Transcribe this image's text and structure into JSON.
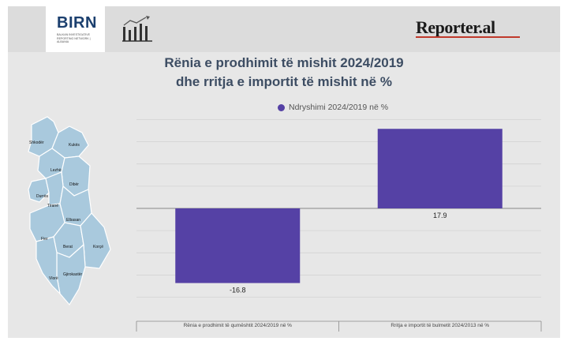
{
  "header": {
    "logo_text": "BIRN",
    "logo_sub": "BALKAN INVESTIGATIVE REPORTING NETWORK | ALBANIA",
    "brand": "Reporter.al",
    "growth_icon": "bar-chart-growth-icon"
  },
  "map": {
    "icon": "albania-districts-map",
    "labels": [
      "Shkodër",
      "Kukës",
      "Lezhë",
      "Dibër",
      "Durrës",
      "Tiranë",
      "Elbasan",
      "Fier",
      "Berat",
      "Korçë",
      "Gjirokastër",
      "Vlorë"
    ],
    "fill_color": "#a9c9dd"
  },
  "chart_data": {
    "type": "bar",
    "title": "Rënia e prodhimit të mishit 2024/2019 dhe rritja e importit të mishit në %",
    "title_line1": "Rënia e prodhimit të mishit 2024/2019",
    "title_line2": "dhe rritja e importit të mishit në %",
    "categories": [
      "Rënia e prodhimit të qumështit 2024/2019 në %",
      "Rritja e importit të bulmetit 2024/2013 në %"
    ],
    "series": [
      {
        "name": "Ndryshimi 2024/2019 në %",
        "values": [
          -16.8,
          17.9
        ],
        "color": "#5541a5"
      }
    ],
    "data_labels": [
      "-16.8",
      "17.9"
    ],
    "ylim": [
      -20,
      20
    ],
    "grid": true,
    "legend": "top"
  }
}
